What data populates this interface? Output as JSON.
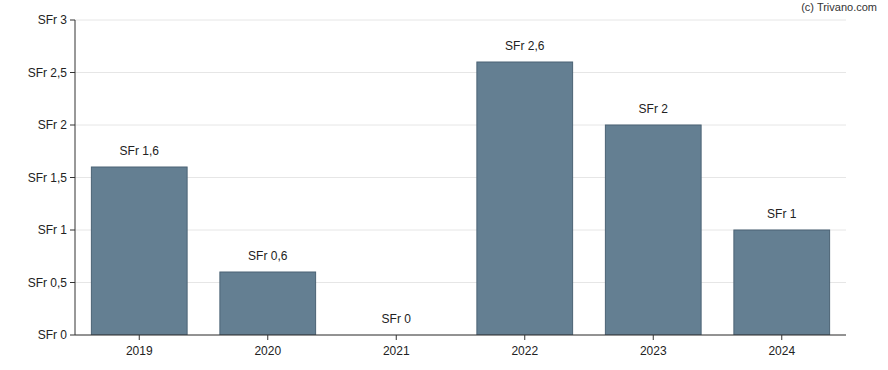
{
  "chart_data": {
    "type": "bar",
    "annotation": "(c) Trivano.com",
    "categories": [
      "2019",
      "2020",
      "2021",
      "2022",
      "2023",
      "2024"
    ],
    "values": [
      1.6,
      0.6,
      0,
      2.6,
      2,
      1
    ],
    "value_labels": [
      "SFr 1,6",
      "SFr 0,6",
      "SFr 0",
      "SFr 2,6",
      "SFr 2",
      "SFr 1"
    ],
    "color": "#647f92",
    "ylim": [
      0,
      3
    ],
    "yticks": [
      {
        "value": 0,
        "label": "SFr 0"
      },
      {
        "value": 0.5,
        "label": "SFr 0,5"
      },
      {
        "value": 1,
        "label": "SFr 1"
      },
      {
        "value": 1.5,
        "label": "SFr 1,5"
      },
      {
        "value": 2,
        "label": "SFr 2"
      },
      {
        "value": 2.5,
        "label": "SFr 2,5"
      },
      {
        "value": 3,
        "label": "SFr 3"
      }
    ],
    "grid": true,
    "data_labels": true
  }
}
